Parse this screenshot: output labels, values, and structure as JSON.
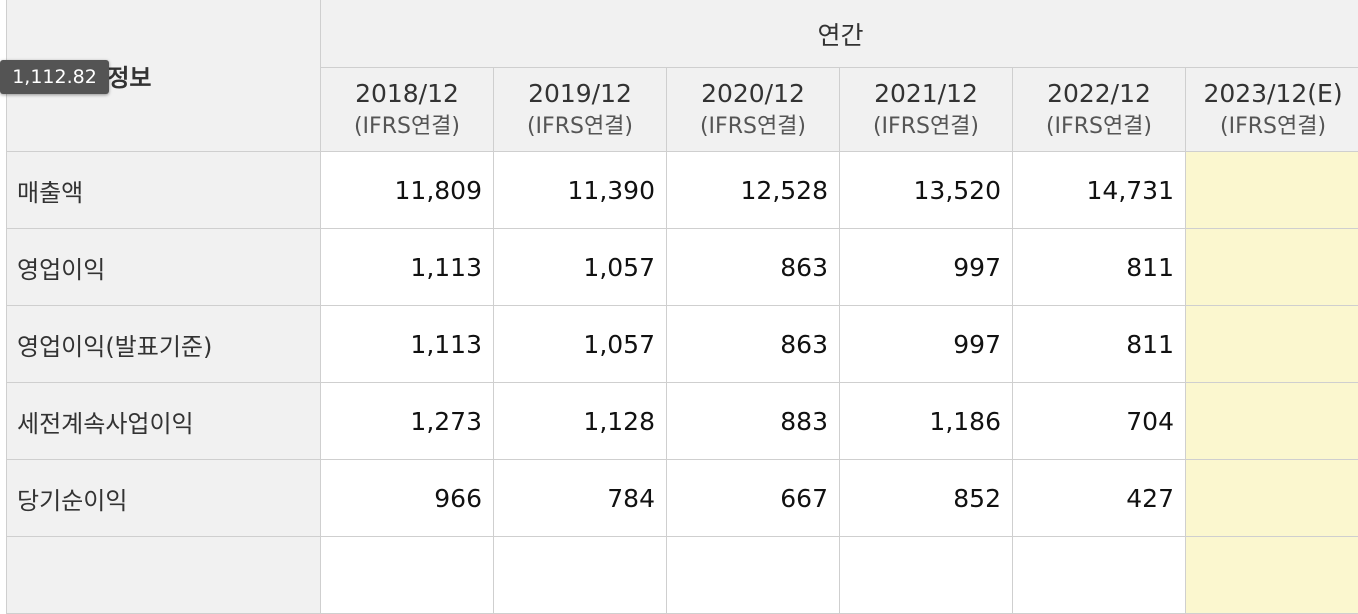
{
  "table": {
    "title": "주요재무정보",
    "group_header": "연간",
    "periods": [
      {
        "year": "2018/12",
        "type": "(IFRS연결)"
      },
      {
        "year": "2019/12",
        "type": "(IFRS연결)"
      },
      {
        "year": "2020/12",
        "type": "(IFRS연결)"
      },
      {
        "year": "2021/12",
        "type": "(IFRS연결)"
      },
      {
        "year": "2022/12",
        "type": "(IFRS연결)"
      },
      {
        "year": "2023/12(E)",
        "type": "(IFRS연결)"
      }
    ],
    "rows": [
      {
        "label": "매출액",
        "values": [
          "11,809",
          "11,390",
          "12,528",
          "13,520",
          "14,731",
          ""
        ]
      },
      {
        "label": "영업이익",
        "values": [
          "1,113",
          "1,057",
          "863",
          "997",
          "811",
          ""
        ]
      },
      {
        "label": "영업이익(발표기준)",
        "values": [
          "1,113",
          "1,057",
          "863",
          "997",
          "811",
          ""
        ]
      },
      {
        "label": "세전계속사업이익",
        "values": [
          "1,273",
          "1,128",
          "883",
          "1,186",
          "704",
          ""
        ]
      },
      {
        "label": "당기순이익",
        "values": [
          "966",
          "784",
          "667",
          "852",
          "427",
          ""
        ]
      }
    ]
  },
  "tooltip": {
    "value": "1,112.82"
  },
  "colors": {
    "header_bg": "#f1f1f1",
    "estimate_bg": "#fbf7cf",
    "border": "#cfcfcf",
    "tooltip_bg": "#545454"
  }
}
